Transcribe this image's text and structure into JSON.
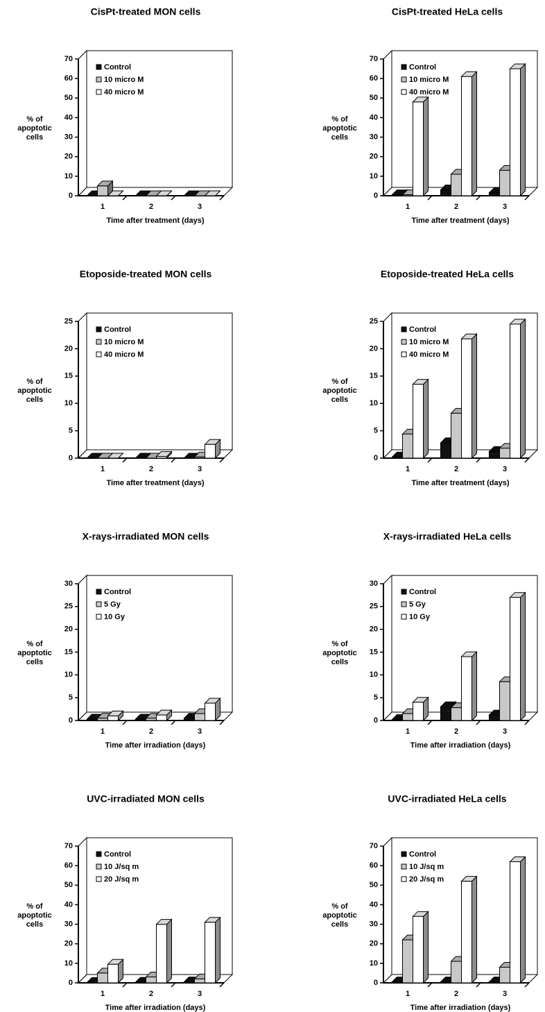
{
  "chart_data": [
    {
      "type": "bar",
      "title": "CisPt-treated MON cells",
      "ylabel": [
        "% of",
        "apoptotic",
        "cells"
      ],
      "xlabel": "Time after treatment (days)",
      "categories": [
        "1",
        "2",
        "3"
      ],
      "ylim": [
        0,
        70
      ],
      "yticks": [
        0,
        10,
        20,
        30,
        40,
        50,
        60,
        70
      ],
      "legend": "upper left",
      "series": [
        {
          "name": "Control",
          "color": "#111111",
          "values": [
            0,
            0,
            0
          ]
        },
        {
          "name": "10 micro M",
          "color": "#c8c8c8",
          "values": [
            5,
            0,
            0
          ]
        },
        {
          "name": "40 micro M",
          "color": "#ffffff",
          "values": [
            0,
            0,
            0
          ]
        }
      ]
    },
    {
      "type": "bar",
      "title": "CisPt-treated HeLa cells",
      "ylabel": [
        "% of",
        "apoptotic",
        "cells"
      ],
      "xlabel": "Time after treatment (days)",
      "categories": [
        "1",
        "2",
        "3"
      ],
      "ylim": [
        0,
        70
      ],
      "yticks": [
        0,
        10,
        20,
        30,
        40,
        50,
        60,
        70
      ],
      "legend": "upper left",
      "series": [
        {
          "name": "Control",
          "color": "#111111",
          "values": [
            0.5,
            3,
            1.5
          ]
        },
        {
          "name": "10 micro M",
          "color": "#c8c8c8",
          "values": [
            0.5,
            11,
            13
          ]
        },
        {
          "name": "40 micro M",
          "color": "#ffffff",
          "values": [
            48,
            61,
            65
          ]
        }
      ]
    },
    {
      "type": "bar",
      "title": "Etoposide-treated MON cells",
      "ylabel": [
        "% of",
        "apoptotic",
        "cells"
      ],
      "xlabel": "Time after treatment (days)",
      "categories": [
        "1",
        "2",
        "3"
      ],
      "ylim": [
        0,
        25
      ],
      "yticks": [
        0,
        5,
        10,
        15,
        20,
        25
      ],
      "legend": "upper left",
      "series": [
        {
          "name": "Control",
          "color": "#111111",
          "values": [
            0,
            0,
            0
          ]
        },
        {
          "name": "10 micro M",
          "color": "#c8c8c8",
          "values": [
            0,
            0,
            0.2
          ]
        },
        {
          "name": "40 micro M",
          "color": "#ffffff",
          "values": [
            0,
            0.3,
            2.5
          ]
        }
      ]
    },
    {
      "type": "bar",
      "title": "Etoposide-treated HeLa cells",
      "ylabel": [
        "% of",
        "apoptotic",
        "cells"
      ],
      "xlabel": "Time after treatment (days)",
      "categories": [
        "1",
        "2",
        "3"
      ],
      "ylim": [
        0,
        25
      ],
      "yticks": [
        0,
        5,
        10,
        15,
        20,
        25
      ],
      "legend": "upper left",
      "series": [
        {
          "name": "Control",
          "color": "#111111",
          "values": [
            0.2,
            2.8,
            1.2
          ]
        },
        {
          "name": "10 micro M",
          "color": "#c8c8c8",
          "values": [
            4.4,
            8.2,
            1.8
          ]
        },
        {
          "name": "40 micro M",
          "color": "#ffffff",
          "values": [
            13.5,
            21.8,
            24.5
          ]
        }
      ]
    },
    {
      "type": "bar",
      "title": "X-rays-irradiated MON cells",
      "ylabel": [
        "% of",
        "apoptotic",
        "cells"
      ],
      "xlabel": "Time after irradiation (days)",
      "categories": [
        "1",
        "2",
        "3"
      ],
      "ylim": [
        0,
        30
      ],
      "yticks": [
        0,
        5,
        10,
        15,
        20,
        25,
        30
      ],
      "legend": "upper left",
      "series": [
        {
          "name": "Control",
          "color": "#111111",
          "values": [
            0.3,
            0.3,
            0.5
          ]
        },
        {
          "name": "5 Gy",
          "color": "#c8c8c8",
          "values": [
            0.5,
            0.5,
            1.5
          ]
        },
        {
          "name": "10 Gy",
          "color": "#ffffff",
          "values": [
            1,
            1.2,
            3.8
          ]
        }
      ]
    },
    {
      "type": "bar",
      "title": "X-rays-irradiated HeLa cells",
      "ylabel": [
        "% of",
        "apoptotic",
        "cells"
      ],
      "xlabel": "Time after irradiation (days)",
      "categories": [
        "1",
        "2",
        "3"
      ],
      "ylim": [
        0,
        30
      ],
      "yticks": [
        0,
        5,
        10,
        15,
        20,
        25,
        30
      ],
      "legend": "upper left",
      "series": [
        {
          "name": "Control",
          "color": "#111111",
          "values": [
            0.2,
            3,
            1.2
          ]
        },
        {
          "name": "5 Gy",
          "color": "#c8c8c8",
          "values": [
            1.5,
            2.8,
            8.5
          ]
        },
        {
          "name": "10 Gy",
          "color": "#ffffff",
          "values": [
            4,
            14,
            27
          ]
        }
      ]
    },
    {
      "type": "bar",
      "title": "UVC-irradiated MON cells",
      "ylabel": [
        "% of",
        "apoptotic",
        "cells"
      ],
      "xlabel": "Time after irradiation (days)",
      "categories": [
        "1",
        "2",
        "3"
      ],
      "ylim": [
        0,
        70
      ],
      "yticks": [
        0,
        10,
        20,
        30,
        40,
        50,
        60,
        70
      ],
      "legend": "upper left",
      "series": [
        {
          "name": "Control",
          "color": "#111111",
          "values": [
            0.2,
            0.3,
            0.5
          ]
        },
        {
          "name": "10 J/sq m",
          "color": "#c8c8c8",
          "values": [
            5,
            3,
            2
          ]
        },
        {
          "name": "20 J/sq m",
          "color": "#ffffff",
          "values": [
            9.5,
            30,
            31
          ]
        }
      ]
    },
    {
      "type": "bar",
      "title": "UVC-irradiated HeLa cells",
      "ylabel": [
        "% of",
        "apoptotic",
        "cells"
      ],
      "xlabel": "Time after irradiation (days)",
      "categories": [
        "1",
        "2",
        "3"
      ],
      "ylim": [
        0,
        70
      ],
      "yticks": [
        0,
        10,
        20,
        30,
        40,
        50,
        60,
        70
      ],
      "legend": "upper left",
      "series": [
        {
          "name": "Control",
          "color": "#111111",
          "values": [
            0.5,
            0.5,
            0.5
          ]
        },
        {
          "name": "10 J/sq m",
          "color": "#c8c8c8",
          "values": [
            22,
            11,
            8
          ]
        },
        {
          "name": "20 J/sq m",
          "color": "#ffffff",
          "values": [
            34,
            52,
            62
          ]
        }
      ]
    }
  ]
}
